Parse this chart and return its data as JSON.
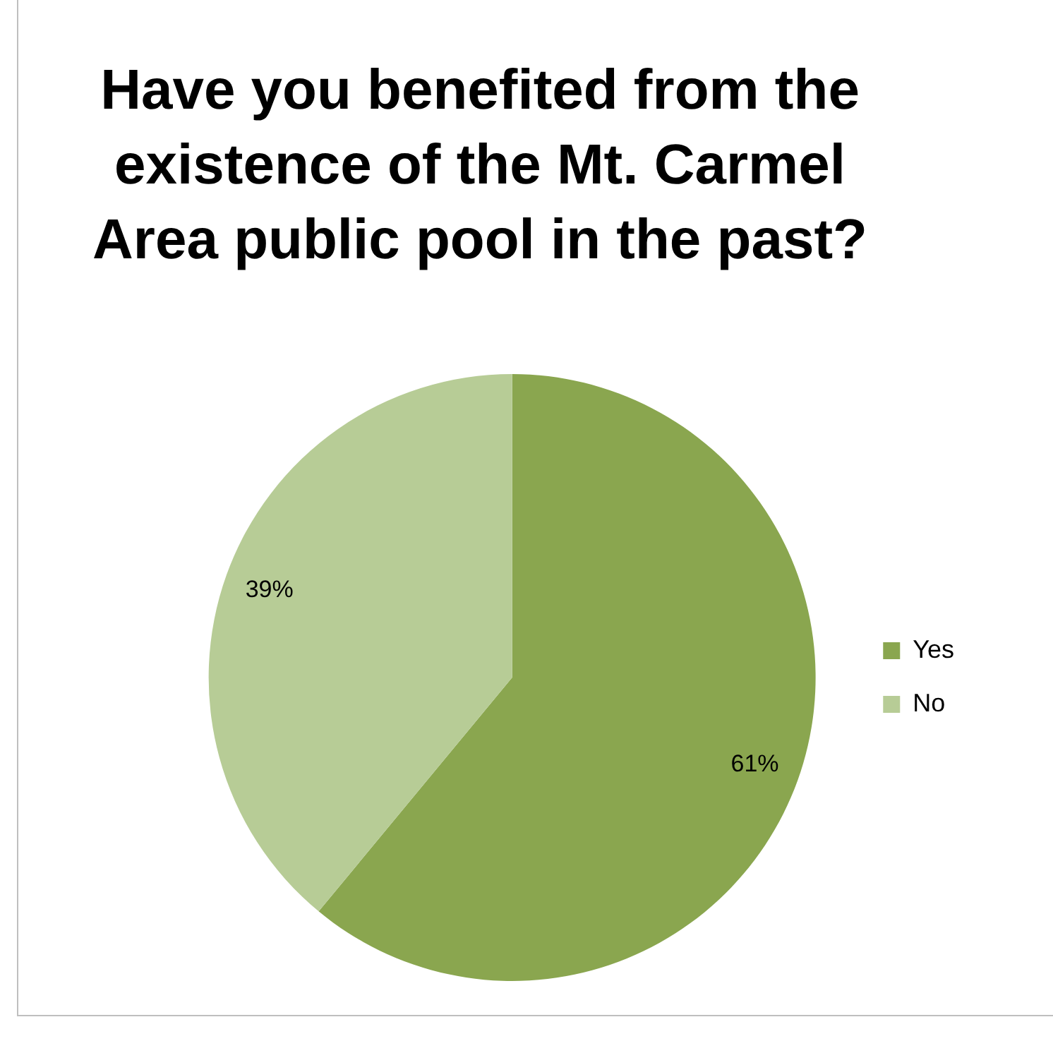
{
  "chart_data": {
    "type": "pie",
    "title": "Have you benefited from the existence of the Mt. Carmel Area public pool in the past?",
    "categories": [
      "Yes",
      "No"
    ],
    "values": [
      61,
      39
    ],
    "colors": [
      "#8aa64f",
      "#b7cc96"
    ],
    "value_labels": [
      "61%",
      "39%"
    ],
    "legend": "right"
  }
}
